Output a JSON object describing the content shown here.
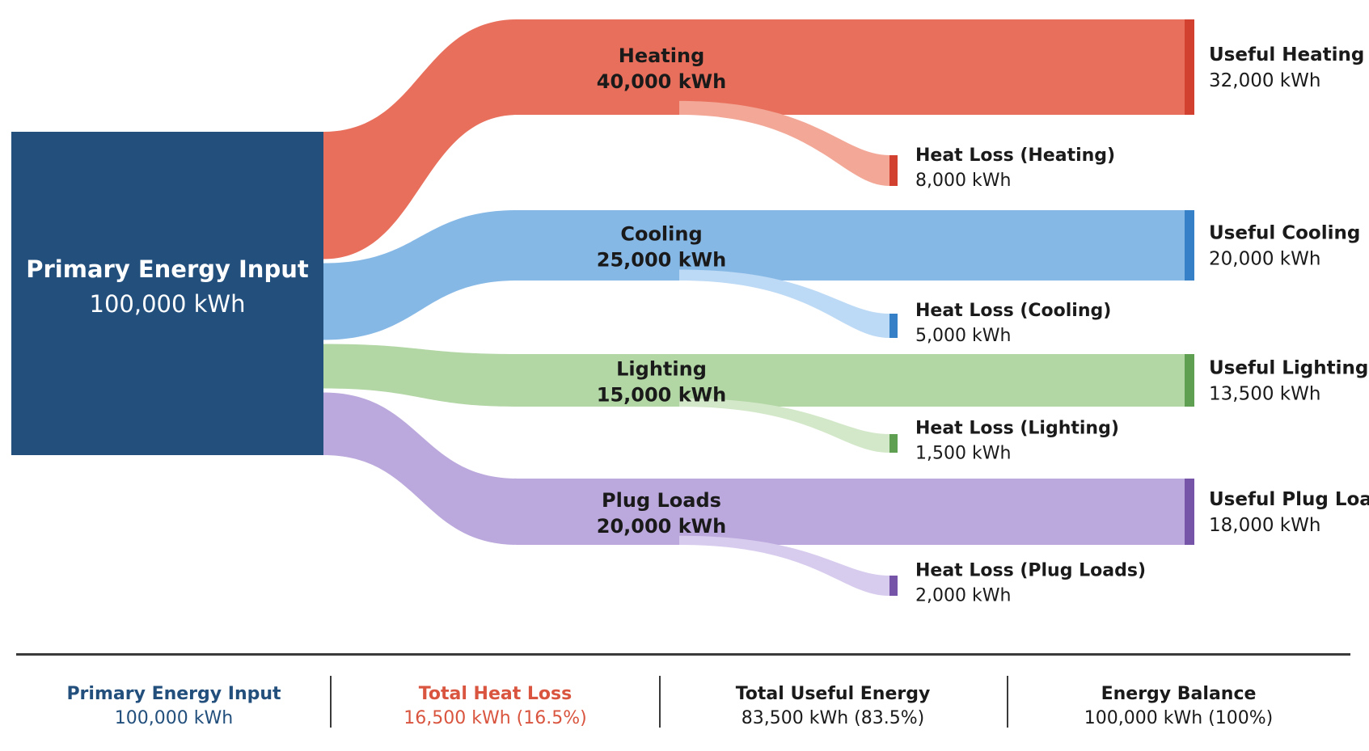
{
  "colors": {
    "source": "#234f7d",
    "heating": "#e86f5c",
    "heating_loss": "#f3a796",
    "heating_node": "#d2402f",
    "cooling": "#86b8e6",
    "cooling_loss": "#bcd9f5",
    "cooling_node": "#3680c8",
    "lighting": "#b2d6a4",
    "lighting_loss": "#d3e8c8",
    "lighting_node": "#5f9f52",
    "plug": "#bba8dc",
    "plug_loss": "#d7cbee",
    "plug_node": "#7654a8",
    "summary_input": "#234f7d",
    "summary_loss": "#d9553f",
    "summary_text": "#1a1a1a"
  },
  "source": {
    "name": "Primary Energy Input",
    "value_label": "100,000 kWh",
    "value": 100000
  },
  "flows": [
    {
      "key": "heating",
      "name": "Heating",
      "value_label": "40,000 kWh",
      "value": 40000,
      "useful": {
        "name": "Useful Heating",
        "value_label": "32,000 kWh",
        "value": 32000
      },
      "loss": {
        "name": "Heat Loss (Heating)",
        "value_label": "8,000 kWh",
        "value": 8000
      }
    },
    {
      "key": "cooling",
      "name": "Cooling",
      "value_label": "25,000 kWh",
      "value": 25000,
      "useful": {
        "name": "Useful Cooling",
        "value_label": "20,000 kWh",
        "value": 20000
      },
      "loss": {
        "name": "Heat Loss (Cooling)",
        "value_label": "5,000 kWh",
        "value": 5000
      }
    },
    {
      "key": "lighting",
      "name": "Lighting",
      "value_label": "15,000 kWh",
      "value": 15000,
      "useful": {
        "name": "Useful Lighting",
        "value_label": "13,500 kWh",
        "value": 13500
      },
      "loss": {
        "name": "Heat Loss (Lighting)",
        "value_label": "1,500 kWh",
        "value": 1500
      }
    },
    {
      "key": "plug",
      "name": "Plug Loads",
      "value_label": "20,000 kWh",
      "value": 20000,
      "useful": {
        "name": "Useful Plug Loads",
        "value_label": "18,000 kWh",
        "value": 18000
      },
      "loss": {
        "name": "Heat Loss (Plug Loads)",
        "value_label": "2,000 kWh",
        "value": 2000
      }
    }
  ],
  "summary": {
    "input": {
      "title": "Primary Energy Input",
      "value": "100,000 kWh"
    },
    "loss": {
      "title": "Total Heat Loss",
      "value": "16,500 kWh (16.5%)"
    },
    "useful": {
      "title": "Total Useful Energy",
      "value": "83,500 kWh (83.5%)"
    },
    "balance": {
      "title": "Energy Balance",
      "value": "100,000 kWh (100%)"
    }
  }
}
